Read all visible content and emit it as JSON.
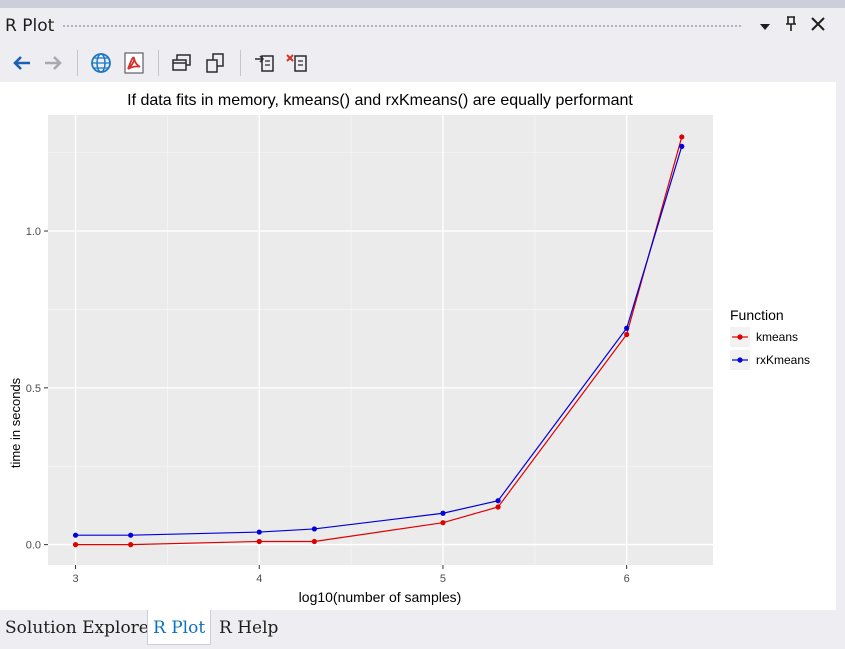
{
  "pane": {
    "title": "R Plot",
    "dropdown_glyph": "▾",
    "pin_glyph": "📌",
    "close_glyph": "✕"
  },
  "toolbar": {
    "icons": [
      "back-arrow-icon",
      "forward-arrow-icon",
      "web-globe-icon",
      "pdf-icon",
      "window-restore-icon",
      "window-copy-icon",
      "export-plot-icon",
      "remove-plot-icon"
    ]
  },
  "tabs": [
    {
      "label": "Solution Explorer",
      "active": false
    },
    {
      "label": "R Plot",
      "active": true
    },
    {
      "label": "R Help",
      "active": false
    }
  ],
  "colors": {
    "panel_bg": "#eeeef2",
    "plot_bg": "#ebebeb",
    "accent": "#0e70c0",
    "kmeans": "#e00000",
    "rxkmeans": "#0000dd"
  },
  "chart_data": {
    "type": "line",
    "title": "If data fits in memory, kmeans() and rxKmeans() are equally performant",
    "xlabel": "log10(number of samples)",
    "ylabel": "time in seconds",
    "xlim": [
      2.85,
      6.47
    ],
    "ylim": [
      -0.065,
      1.37
    ],
    "xticks": [
      3,
      4,
      5,
      6
    ],
    "xtick_labels": [
      "3",
      "4",
      "5",
      "6"
    ],
    "yticks": [
      0.0,
      0.5,
      1.0
    ],
    "ytick_labels": [
      "0.0",
      "0.5",
      "1.0"
    ],
    "grid": true,
    "legend": {
      "title": "Function",
      "position": "right"
    },
    "x": [
      3.0,
      3.3,
      4.0,
      4.3,
      5.0,
      5.3,
      6.0,
      6.3
    ],
    "series": [
      {
        "name": "kmeans",
        "color": "#e00000",
        "values": [
          0.0,
          0.0,
          0.01,
          0.01,
          0.07,
          0.12,
          0.67,
          1.3
        ]
      },
      {
        "name": "rxKmeans",
        "color": "#0000dd",
        "values": [
          0.03,
          0.03,
          0.04,
          0.05,
          0.1,
          0.14,
          0.69,
          1.27
        ]
      }
    ]
  }
}
